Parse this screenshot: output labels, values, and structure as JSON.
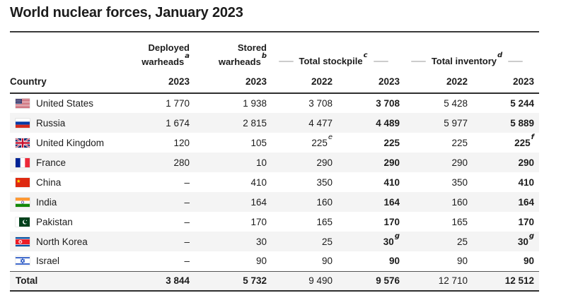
{
  "title": "World nuclear forces, January 2023",
  "colors": {
    "stripe": "#f4f4f4",
    "rule_dark": "#2f2f2f",
    "rule_above_total": "#555555",
    "dash_decoration": "#cccccc",
    "text": "#1c1c1c"
  },
  "table": {
    "country_header": "Country",
    "groups": [
      {
        "line1": "Deployed",
        "line2": "warheads",
        "sup": "a",
        "span": 1
      },
      {
        "line1": "Stored",
        "line2": "warheads",
        "sup": "b",
        "span": 1
      },
      {
        "label": "Total stockpile",
        "sup": "c",
        "span": 2
      },
      {
        "label": "Total inventory",
        "sup": "d",
        "span": 2
      }
    ],
    "year_row": [
      "2023",
      "2023",
      "2022",
      "2023",
      "2022",
      "2023"
    ],
    "bold_value_cols": [
      3,
      5
    ],
    "rows": [
      {
        "flag": "us",
        "country": "United States",
        "values": [
          "1 770",
          "1 938",
          "3 708",
          "3 708",
          "5 428",
          "5 244"
        ]
      },
      {
        "flag": "ru",
        "country": "Russia",
        "values": [
          "1 674",
          "2 815",
          "4 477",
          "4 489",
          "5 977",
          "5 889"
        ]
      },
      {
        "flag": "gb",
        "country": "United Kingdom",
        "values": [
          "120",
          "105",
          "225^e",
          "225",
          "225",
          "225^f"
        ]
      },
      {
        "flag": "fr",
        "country": "France",
        "values": [
          "280",
          "10",
          "290",
          "290",
          "290",
          "290"
        ]
      },
      {
        "flag": "cn",
        "country": "China",
        "values": [
          "–",
          "410",
          "350",
          "410",
          "350",
          "410"
        ]
      },
      {
        "flag": "in",
        "country": "India",
        "values": [
          "–",
          "164",
          "160",
          "164",
          "160",
          "164"
        ]
      },
      {
        "flag": "pk",
        "country": "Pakistan",
        "values": [
          "–",
          "170",
          "165",
          "170",
          "165",
          "170"
        ]
      },
      {
        "flag": "kp",
        "country": "North Korea",
        "values": [
          "–",
          "30",
          "25",
          "30^g",
          "25",
          "30^g"
        ]
      },
      {
        "flag": "il",
        "country": "Israel",
        "values": [
          "–",
          "90",
          "90",
          "90",
          "90",
          "90"
        ]
      }
    ],
    "total": {
      "label": "Total",
      "values": [
        "3 844",
        "5 732",
        "9 490",
        "9 576",
        "12 710",
        "12 512"
      ],
      "regular_cols": [
        2,
        4
      ]
    }
  },
  "chart_data": {
    "type": "table",
    "title": "World nuclear forces, January 2023",
    "columns": [
      "Country",
      "Deployed warheads 2023",
      "Stored warheads 2023",
      "Total stockpile 2022",
      "Total stockpile 2023",
      "Total inventory 2022",
      "Total inventory 2023"
    ],
    "rows": [
      [
        "United States",
        1770,
        1938,
        3708,
        3708,
        5428,
        5244
      ],
      [
        "Russia",
        1674,
        2815,
        4477,
        4489,
        5977,
        5889
      ],
      [
        "United Kingdom",
        120,
        105,
        225,
        225,
        225,
        225
      ],
      [
        "France",
        280,
        10,
        290,
        290,
        290,
        290
      ],
      [
        "China",
        null,
        410,
        350,
        410,
        350,
        410
      ],
      [
        "India",
        null,
        164,
        160,
        164,
        160,
        164
      ],
      [
        "Pakistan",
        null,
        170,
        165,
        170,
        165,
        170
      ],
      [
        "North Korea",
        null,
        30,
        25,
        30,
        25,
        30
      ],
      [
        "Israel",
        null,
        90,
        90,
        90,
        90,
        90
      ]
    ],
    "total_row": [
      "Total",
      3844,
      5732,
      9490,
      9576,
      12710,
      12512
    ],
    "footnote_markers": {
      "column_headers": [
        "a",
        "b",
        "c",
        "d"
      ],
      "cell_markers": [
        "United Kingdom Total stockpile 2022: e",
        "United Kingdom Total inventory 2023: f",
        "North Korea Total stockpile 2023: g",
        "North Korea Total inventory 2023: g"
      ]
    },
    "layout_hints": {
      "no_data_symbol": "–",
      "bold_columns": [
        "Total stockpile 2023",
        "Total inventory 2023"
      ],
      "striped_rows": true
    }
  }
}
